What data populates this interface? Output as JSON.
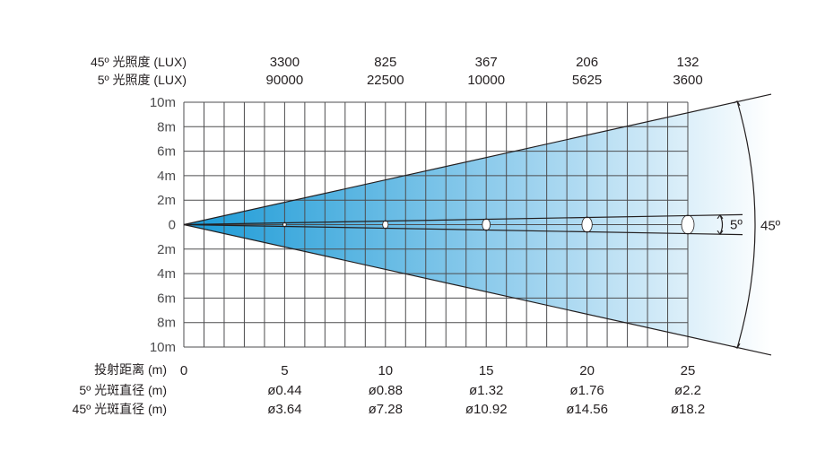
{
  "chart_data": {
    "type": "line",
    "title": "",
    "xlabel": "投射距离 (m)",
    "ylabel": "",
    "xlim": [
      0,
      25
    ],
    "ylim": [
      -10,
      10
    ],
    "grid": true,
    "x_ticks": [
      "0",
      "5",
      "10",
      "15",
      "20",
      "25"
    ],
    "y_ticks": [
      "10m",
      "8m",
      "6m",
      "4m",
      "2m",
      "0",
      "2m",
      "4m",
      "6m",
      "8m",
      "10m"
    ],
    "beam_angles": [
      {
        "label": "45º",
        "degrees": 45
      },
      {
        "label": "5º",
        "degrees": 5
      }
    ],
    "table_rows": [
      {
        "label": "45º 光照度 (LUX)",
        "values": [
          "3300",
          "825",
          "367",
          "206",
          "132"
        ]
      },
      {
        "label": "5º 光照度 (LUX)",
        "values": [
          "90000",
          "22500",
          "10000",
          "5625",
          "3600"
        ]
      },
      {
        "label": "5º 光斑直径 (m)",
        "values": [
          "ø0.44",
          "ø0.88",
          "ø1.32",
          "ø1.76",
          "ø2.2"
        ]
      },
      {
        "label": "45º 光斑直径 (m)",
        "values": [
          "ø3.64",
          "ø7.28",
          "ø10.92",
          "ø14.56",
          "ø18.2"
        ]
      }
    ],
    "distances": [
      5,
      10,
      15,
      20,
      25
    ],
    "spot_diameter_5deg": [
      0.44,
      0.88,
      1.32,
      1.76,
      2.2
    ],
    "spot_diameter_45deg": [
      3.64,
      7.28,
      10.92,
      14.56,
      18.2
    ]
  },
  "colors": {
    "beam_dark": "#1a9ad6",
    "beam_light": "#ffffff",
    "grid": "#4d4d4f",
    "text": "#231f20"
  }
}
